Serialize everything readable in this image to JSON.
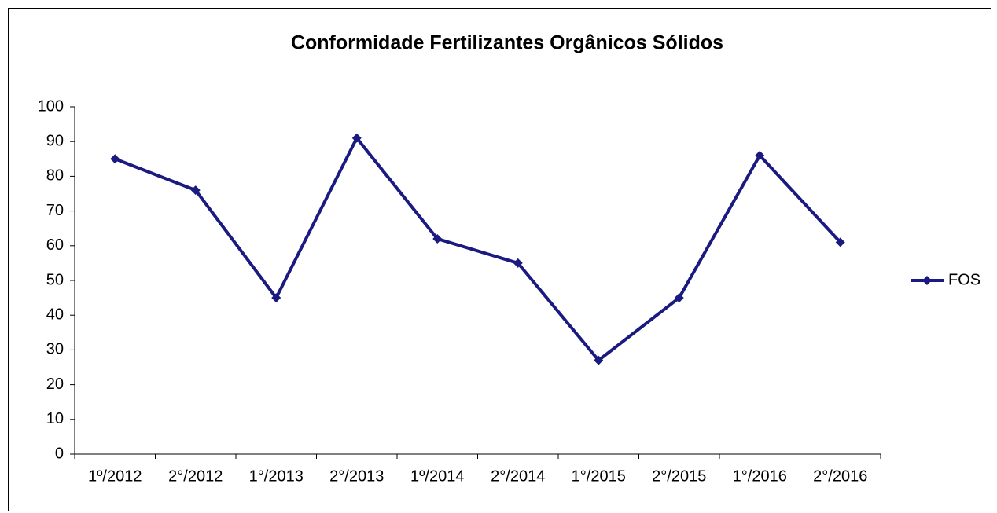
{
  "chart_data": {
    "type": "line",
    "title": "Conformidade Fertilizantes Orgânicos Sólidos",
    "categories": [
      "1º/2012",
      "2°/2012",
      "1°/2013",
      "2°/2013",
      "1º/2014",
      "2°/2014",
      "1°/2015",
      "2°/2015",
      "1°/2016",
      "2°/2016"
    ],
    "series": [
      {
        "name": "FOS",
        "color": "#1a1a80",
        "values": [
          85,
          76,
          45,
          91,
          62,
          55,
          27,
          45,
          86,
          61
        ]
      }
    ],
    "ylim": [
      0,
      100
    ],
    "yticks": [
      0,
      10,
      20,
      30,
      40,
      50,
      60,
      70,
      80,
      90,
      100
    ],
    "grid": false,
    "legend": "right"
  }
}
